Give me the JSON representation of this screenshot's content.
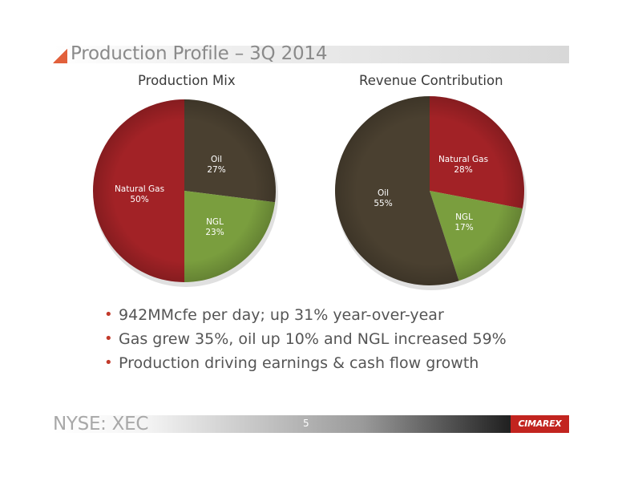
{
  "slide": {
    "title": "Production Profile – 3Q 2014",
    "footer_ticker": "NYSE: XEC",
    "page_number": "5",
    "logo_text": "CIMAREX",
    "accent_color": "#e2603b"
  },
  "bullets": [
    "942MMcfe per day; up 31% year-over-year",
    "Gas grew 35%, oil up 10% and NGL increased 59%",
    "Production driving earnings & cash flow growth"
  ],
  "chart_data": [
    {
      "type": "pie",
      "title": "Production Mix",
      "slices": [
        {
          "name": "Oil",
          "value": 27,
          "label": "27%",
          "color": "#4a4030"
        },
        {
          "name": "NGL",
          "value": 23,
          "label": "23%",
          "color": "#7a9e3e"
        },
        {
          "name": "Natural Gas",
          "value": 50,
          "label": "50%",
          "color": "#a22226"
        }
      ]
    },
    {
      "type": "pie",
      "title": "Revenue Contribution",
      "slices": [
        {
          "name": "Natural Gas",
          "value": 28,
          "label": "28%",
          "color": "#a22226"
        },
        {
          "name": "NGL",
          "value": 17,
          "label": "17%",
          "color": "#7a9e3e"
        },
        {
          "name": "Oil",
          "value": 55,
          "label": "55%",
          "color": "#4a4030"
        }
      ]
    }
  ]
}
